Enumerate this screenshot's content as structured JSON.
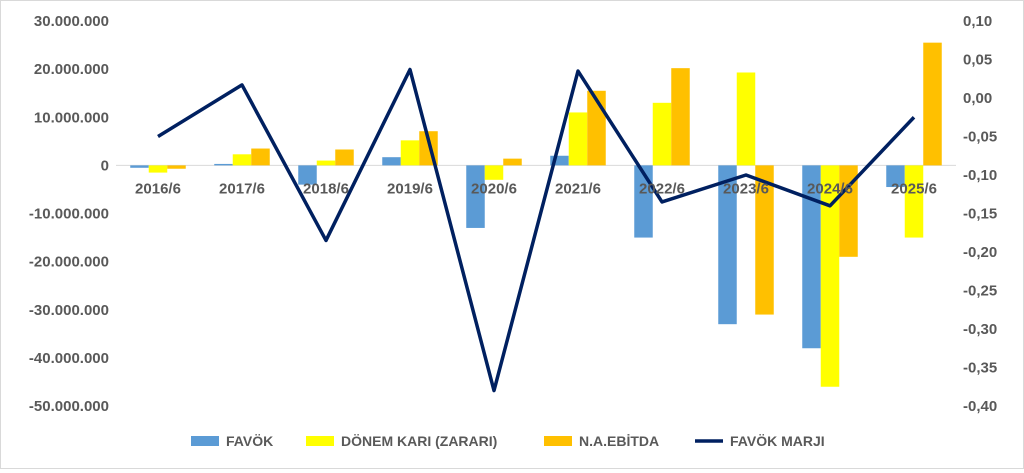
{
  "chart_data": {
    "type": "bar",
    "categories": [
      "2016/6",
      "2017/6",
      "2018/6",
      "2019/6",
      "2020/6",
      "2021/6",
      "2022/6",
      "2023/6",
      "2024/6",
      "2025/6"
    ],
    "series": [
      {
        "name": "FAVÖK",
        "type": "bar",
        "axis": "left",
        "color": "#5b9bd5",
        "values": [
          -500000,
          300000,
          -4000000,
          1700000,
          -13000000,
          2000000,
          -15000000,
          -33000000,
          -38000000,
          -4500000
        ]
      },
      {
        "name": "DÖNEM KARI (ZARARI)",
        "type": "bar",
        "axis": "left",
        "color": "#ffff00",
        "values": [
          -1500000,
          2300000,
          1000000,
          5200000,
          -3000000,
          11000000,
          13000000,
          19300000,
          -46000000,
          -15000000
        ]
      },
      {
        "name": "N.A.EBİTDA",
        "type": "bar",
        "axis": "left",
        "color": "#ffc000",
        "values": [
          -700000,
          3500000,
          3300000,
          7100000,
          1400000,
          15500000,
          20200000,
          -31000000,
          -19000000,
          25500000
        ]
      },
      {
        "name": "FAVÖK MARJI",
        "type": "line",
        "axis": "right",
        "color": "#002060",
        "values": [
          -0.05,
          0.017,
          -0.185,
          0.037,
          -0.38,
          0.035,
          -0.135,
          -0.1,
          -0.14,
          -0.025
        ]
      }
    ],
    "left_axis": {
      "ylim": [
        -50000000,
        30000000
      ],
      "ticks": [
        "30.000.000",
        "20.000.000",
        "10.000.000",
        "0",
        "-10.000.000",
        "-20.000.000",
        "-30.000.000",
        "-40.000.000",
        "-50.000.000"
      ]
    },
    "right_axis": {
      "ylim": [
        -0.4,
        0.1
      ],
      "ticks": [
        "0,10",
        "0,05",
        "0,00",
        "-0,05",
        "-0,10",
        "-0,15",
        "-0,20",
        "-0,25",
        "-0,30",
        "-0,35",
        "-0,40"
      ]
    },
    "title": "",
    "xlabel": "",
    "ylabel": "",
    "grid": false,
    "legend_position": "bottom"
  }
}
